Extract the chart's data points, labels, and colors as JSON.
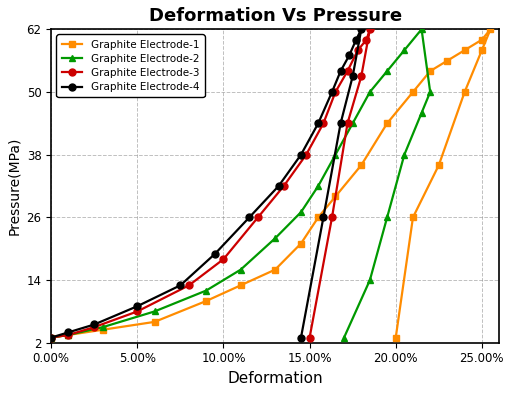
{
  "title": "Deformation Vs Pressure",
  "xlabel": "Deformation",
  "ylabel": "Pressure(MPa)",
  "ylim": [
    2,
    62
  ],
  "xlim": [
    0.0,
    0.26
  ],
  "yticks": [
    2,
    14,
    26,
    38,
    50,
    62
  ],
  "xticks": [
    0.0,
    0.05,
    0.1,
    0.15,
    0.2,
    0.25
  ],
  "grid": true,
  "background": "#ffffff",
  "series": [
    {
      "label": "Graphite Electrode-1",
      "color": "#FF8C00",
      "marker": "s",
      "x": [
        0.0,
        0.01,
        0.03,
        0.06,
        0.09,
        0.11,
        0.13,
        0.145,
        0.155,
        0.165,
        0.18,
        0.195,
        0.21,
        0.22,
        0.23,
        0.24,
        0.25,
        0.255,
        0.25,
        0.24,
        0.225,
        0.21,
        0.2
      ],
      "y": [
        3,
        3.5,
        4.5,
        6,
        10,
        13,
        16,
        21,
        26,
        30,
        36,
        44,
        50,
        54,
        56,
        58,
        60,
        62,
        58,
        50,
        36,
        26,
        3
      ]
    },
    {
      "label": "Graphite Electrode-2",
      "color": "#009900",
      "marker": "^",
      "x": [
        0.0,
        0.01,
        0.03,
        0.06,
        0.09,
        0.11,
        0.13,
        0.145,
        0.155,
        0.165,
        0.175,
        0.185,
        0.195,
        0.205,
        0.215,
        0.22,
        0.215,
        0.205,
        0.195,
        0.185,
        0.17
      ],
      "y": [
        3,
        3.5,
        5,
        8,
        12,
        16,
        22,
        27,
        32,
        38,
        44,
        50,
        54,
        58,
        62,
        50,
        46,
        38,
        26,
        14,
        3
      ]
    },
    {
      "label": "Graphite Electrode-3",
      "color": "#CC0000",
      "marker": "o",
      "x": [
        0.0,
        0.01,
        0.025,
        0.05,
        0.08,
        0.1,
        0.12,
        0.135,
        0.148,
        0.158,
        0.165,
        0.172,
        0.178,
        0.183,
        0.185,
        0.18,
        0.172,
        0.163,
        0.15
      ],
      "y": [
        3,
        3.5,
        5,
        8,
        13,
        18,
        26,
        32,
        38,
        44,
        50,
        54,
        58,
        60,
        62,
        53,
        44,
        26,
        3
      ]
    },
    {
      "label": "Graphite Electrode-4",
      "color": "#000000",
      "marker": "o",
      "x": [
        0.0,
        0.01,
        0.025,
        0.05,
        0.075,
        0.095,
        0.115,
        0.132,
        0.145,
        0.155,
        0.163,
        0.168,
        0.173,
        0.177,
        0.18,
        0.175,
        0.168,
        0.158,
        0.145
      ],
      "y": [
        3,
        4,
        5.5,
        9,
        13,
        19,
        26,
        32,
        38,
        44,
        50,
        54,
        57,
        60,
        62,
        53,
        44,
        26,
        3
      ]
    }
  ]
}
